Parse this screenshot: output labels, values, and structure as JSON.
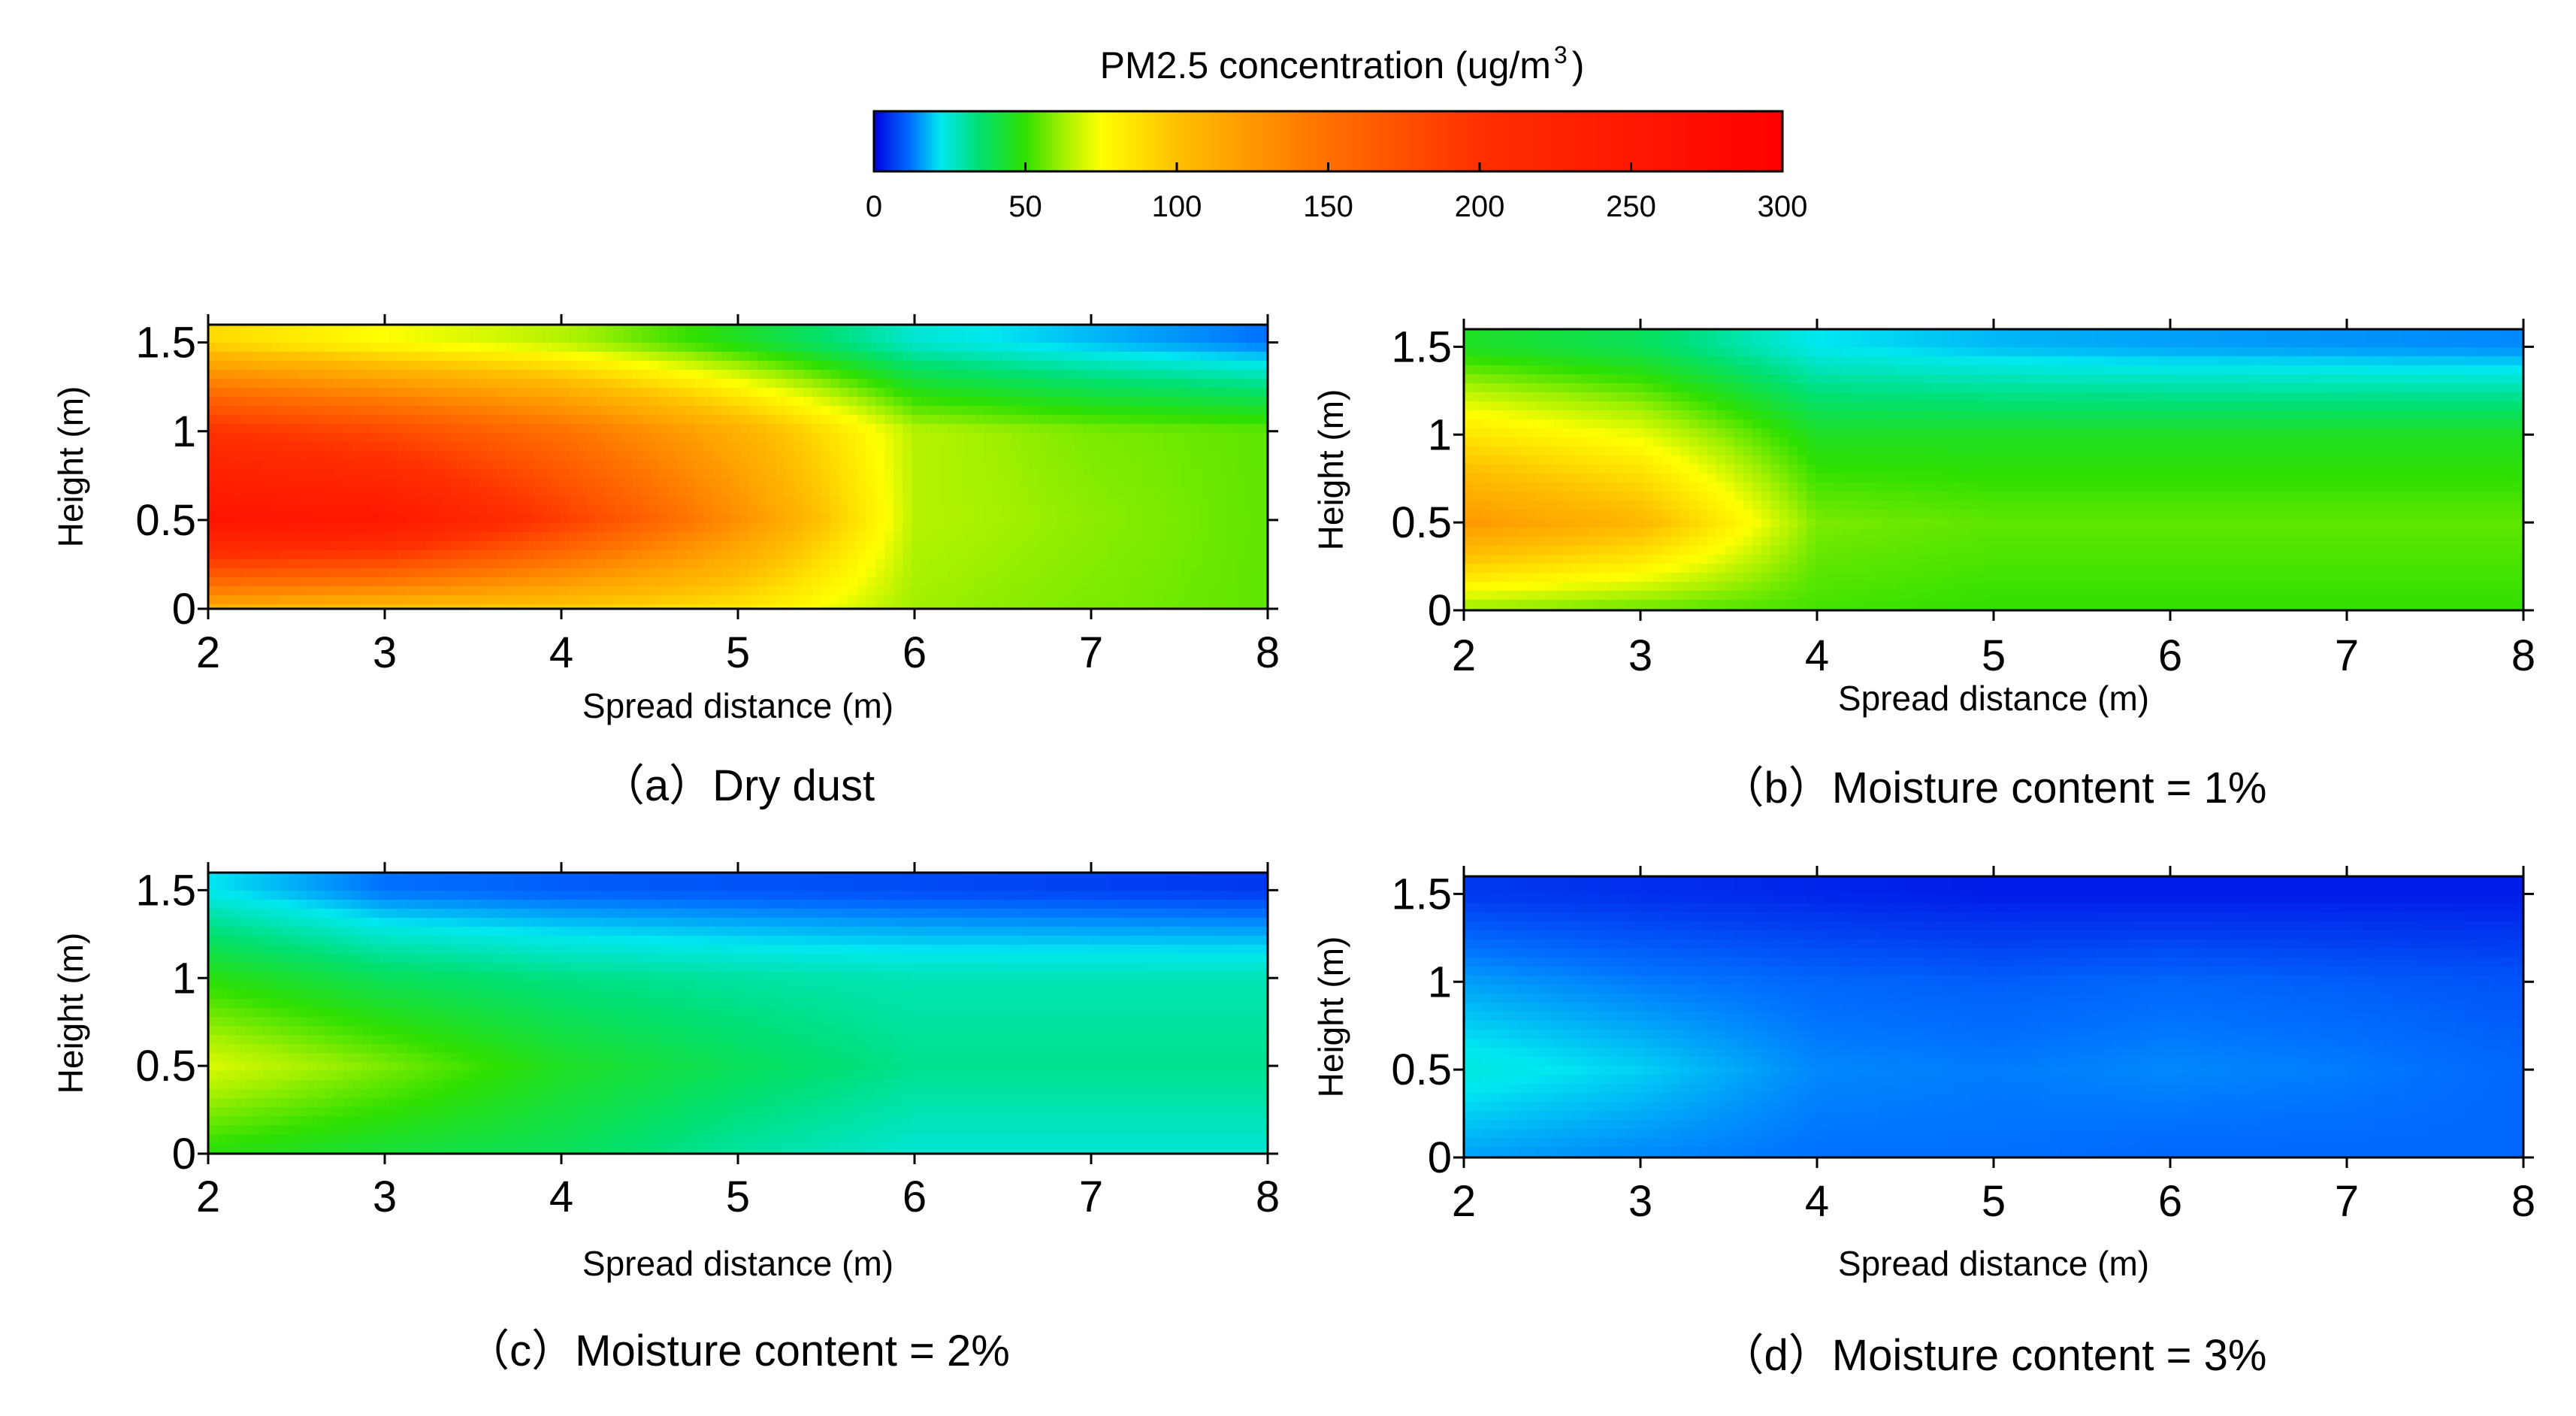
{
  "chart_data": {
    "type": "heatmap",
    "colorbar": {
      "title": "PM2.5 concentration (ug/m",
      "title_suffix": ")",
      "range": [
        0,
        300
      ],
      "ticks": [
        0,
        50,
        100,
        150,
        200,
        250,
        300
      ],
      "stops": [
        {
          "v": 0,
          "c": "#0000e0"
        },
        {
          "v": 12,
          "c": "#0070ff"
        },
        {
          "v": 22,
          "c": "#00e8f0"
        },
        {
          "v": 35,
          "c": "#00e070"
        },
        {
          "v": 50,
          "c": "#30e000"
        },
        {
          "v": 62,
          "c": "#a0f000"
        },
        {
          "v": 75,
          "c": "#ffff00"
        },
        {
          "v": 100,
          "c": "#ffc000"
        },
        {
          "v": 150,
          "c": "#ff7000"
        },
        {
          "v": 200,
          "c": "#ff3000"
        },
        {
          "v": 300,
          "c": "#ff0000"
        }
      ]
    },
    "panels": [
      {
        "id": "a",
        "title": "（a）Dry dust",
        "xlabel": "Spread distance (m)",
        "ylabel": "Height (m)",
        "x": [
          2,
          3,
          4,
          5,
          6,
          7,
          8
        ],
        "y": [
          0,
          0.5,
          1,
          1.5
        ],
        "xlim": [
          2,
          8
        ],
        "ylim": [
          0,
          1.6
        ],
        "xticks": [
          "2",
          "3",
          "4",
          "5",
          "6",
          "7",
          "8"
        ],
        "yticks": [
          "0",
          "0.5",
          "1",
          "1.5"
        ],
        "z": [
          [
            110,
            100,
            95,
            85,
            62,
            58,
            55
          ],
          [
            260,
            250,
            190,
            130,
            65,
            60,
            55
          ],
          [
            200,
            180,
            150,
            110,
            65,
            58,
            55
          ],
          [
            90,
            75,
            65,
            45,
            25,
            18,
            12
          ]
        ]
      },
      {
        "id": "b",
        "title": "（b）Moisture content = 1%",
        "xlabel": "Spread distance (m)",
        "ylabel": "Height (m)",
        "x": [
          2,
          3,
          4,
          5,
          6,
          7,
          8
        ],
        "y": [
          0,
          0.5,
          1,
          1.5
        ],
        "xlim": [
          2,
          8
        ],
        "ylim": [
          0,
          1.6
        ],
        "xticks": [
          "2",
          "3",
          "4",
          "5",
          "6",
          "7",
          "8"
        ],
        "yticks": [
          "0",
          "0.5",
          "1",
          "1.5"
        ],
        "z": [
          [
            60,
            55,
            52,
            50,
            50,
            50,
            50
          ],
          [
            125,
            105,
            58,
            55,
            55,
            55,
            55
          ],
          [
            85,
            72,
            45,
            45,
            45,
            45,
            45
          ],
          [
            45,
            38,
            22,
            18,
            16,
            15,
            14
          ]
        ]
      },
      {
        "id": "c",
        "title": "（c）Moisture content = 2%",
        "xlabel": "Spread distance (m)",
        "ylabel": "Height (m)",
        "x": [
          2,
          3,
          4,
          5,
          6,
          7,
          8
        ],
        "y": [
          0,
          0.5,
          1,
          1.5
        ],
        "xlim": [
          2,
          8
        ],
        "ylim": [
          0,
          1.6
        ],
        "xticks": [
          "2",
          "3",
          "4",
          "5",
          "6",
          "7",
          "8"
        ],
        "yticks": [
          "0",
          "0.5",
          "1",
          "1.5"
        ],
        "z": [
          [
            48,
            42,
            38,
            30,
            25,
            25,
            25
          ],
          [
            70,
            58,
            45,
            38,
            32,
            32,
            32
          ],
          [
            48,
            38,
            33,
            30,
            28,
            28,
            28
          ],
          [
            22,
            12,
            10,
            9,
            8,
            7,
            6
          ]
        ]
      },
      {
        "id": "d",
        "title": "（d）Moisture content = 3%",
        "xlabel": "Spread distance (m)",
        "ylabel": "Height (m)",
        "x": [
          2,
          3,
          4,
          5,
          6,
          7,
          8
        ],
        "y": [
          0,
          0.5,
          1,
          1.5
        ],
        "xlim": [
          2,
          8
        ],
        "ylim": [
          0,
          1.6
        ],
        "xticks": [
          "2",
          "3",
          "4",
          "5",
          "6",
          "7",
          "8"
        ],
        "yticks": [
          "0",
          "0.5",
          "1",
          "1.5"
        ],
        "z": [
          [
            16,
            14,
            12,
            12,
            11,
            11,
            11
          ],
          [
            24,
            20,
            14,
            13,
            14,
            13,
            11
          ],
          [
            16,
            13,
            11,
            10,
            11,
            10,
            9
          ],
          [
            6,
            5,
            4,
            3,
            3,
            3,
            3
          ]
        ]
      }
    ]
  }
}
